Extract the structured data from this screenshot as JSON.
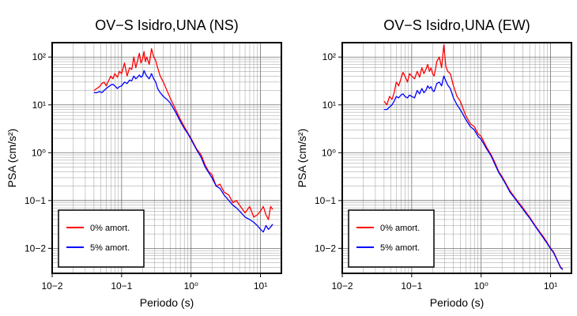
{
  "chart_data": [
    {
      "type": "line",
      "title": "OV−S Isidro,UNA (NS)",
      "xlabel": "Periodo (s)",
      "ylabel": "PSA (cm/s²)",
      "xscale": "log",
      "yscale": "log",
      "xlim": [
        0.01,
        20
      ],
      "ylim": [
        0.003,
        200
      ],
      "x_ticks": [
        {
          "label": "10−2",
          "value": 0.01
        },
        {
          "label": "10−1",
          "value": 0.1
        },
        {
          "label": "10⁰",
          "value": 1
        },
        {
          "label": "10¹",
          "value": 10
        }
      ],
      "y_ticks": [
        {
          "label": "10−2",
          "value": 0.01
        },
        {
          "label": "10−1",
          "value": 0.1
        },
        {
          "label": "10⁰",
          "value": 1
        },
        {
          "label": "10¹",
          "value": 10
        },
        {
          "label": "10²",
          "value": 100
        }
      ],
      "grid": true,
      "legend_position": "bottom-left",
      "series": [
        {
          "name": "0% amort.",
          "color": "#ff0000",
          "x": [
            0.04,
            0.044,
            0.048,
            0.052,
            0.056,
            0.06,
            0.065,
            0.07,
            0.075,
            0.08,
            0.087,
            0.093,
            0.1,
            0.11,
            0.12,
            0.13,
            0.14,
            0.15,
            0.16,
            0.17,
            0.18,
            0.19,
            0.2,
            0.21,
            0.22,
            0.23,
            0.25,
            0.27,
            0.29,
            0.31,
            0.33,
            0.36,
            0.4,
            0.45,
            0.5,
            0.6,
            0.7,
            0.8,
            0.9,
            1.0,
            1.2,
            1.4,
            1.6,
            1.8,
            2.0,
            2.3,
            2.6,
            3.0,
            3.5,
            4.0,
            4.5,
            5.0,
            6.0,
            7.0,
            8.0,
            9.0,
            10.0,
            11.0,
            12.0,
            13.0,
            14.0,
            15.0
          ],
          "y": [
            20,
            22,
            24,
            28,
            30,
            25,
            32,
            40,
            35,
            45,
            38,
            50,
            45,
            75,
            40,
            60,
            55,
            100,
            60,
            85,
            120,
            75,
            90,
            130,
            80,
            100,
            70,
            150,
            100,
            85,
            60,
            40,
            30,
            20,
            14,
            8,
            5,
            3.5,
            2.6,
            2.0,
            1.2,
            0.9,
            0.55,
            0.4,
            0.35,
            0.2,
            0.22,
            0.15,
            0.13,
            0.09,
            0.1,
            0.08,
            0.055,
            0.075,
            0.045,
            0.05,
            0.06,
            0.075,
            0.05,
            0.04,
            0.075,
            0.065
          ]
        },
        {
          "name": "5% amort.",
          "color": "#0000ff",
          "x": [
            0.04,
            0.044,
            0.048,
            0.052,
            0.056,
            0.06,
            0.065,
            0.07,
            0.075,
            0.08,
            0.087,
            0.093,
            0.1,
            0.11,
            0.12,
            0.13,
            0.14,
            0.15,
            0.16,
            0.17,
            0.18,
            0.19,
            0.2,
            0.21,
            0.22,
            0.23,
            0.25,
            0.27,
            0.29,
            0.31,
            0.33,
            0.36,
            0.4,
            0.45,
            0.5,
            0.6,
            0.7,
            0.8,
            0.9,
            1.0,
            1.2,
            1.4,
            1.6,
            1.8,
            2.0,
            2.3,
            2.6,
            3.0,
            3.5,
            4.0,
            4.5,
            5.0,
            6.0,
            7.0,
            8.0,
            9.0,
            10.0,
            11.0,
            12.0,
            13.0,
            14.0,
            15.0
          ],
          "y": [
            18,
            18,
            19,
            18,
            20,
            22,
            24,
            26,
            27,
            25,
            22,
            24,
            25,
            30,
            28,
            33,
            32,
            40,
            35,
            38,
            42,
            38,
            40,
            52,
            45,
            40,
            35,
            45,
            35,
            30,
            22,
            18,
            15,
            13,
            11,
            7,
            4.5,
            3.2,
            2.5,
            1.9,
            1.15,
            0.8,
            0.5,
            0.38,
            0.3,
            0.2,
            0.18,
            0.13,
            0.1,
            0.08,
            0.07,
            0.06,
            0.045,
            0.04,
            0.035,
            0.03,
            0.025,
            0.022,
            0.03,
            0.025,
            0.028,
            0.032
          ]
        }
      ]
    },
    {
      "type": "line",
      "title": "OV−S Isidro,UNA (EW)",
      "xlabel": "Periodo (s)",
      "ylabel": "PSA (cm/s²)",
      "xscale": "log",
      "yscale": "log",
      "xlim": [
        0.01,
        20
      ],
      "ylim": [
        0.003,
        200
      ],
      "x_ticks": [
        {
          "label": "10−2",
          "value": 0.01
        },
        {
          "label": "10−1",
          "value": 0.1
        },
        {
          "label": "10⁰",
          "value": 1
        },
        {
          "label": "10¹",
          "value": 10
        }
      ],
      "y_ticks": [
        {
          "label": "10−2",
          "value": 0.01
        },
        {
          "label": "10−1",
          "value": 0.1
        },
        {
          "label": "10⁰",
          "value": 1
        },
        {
          "label": "10¹",
          "value": 10
        },
        {
          "label": "10²",
          "value": 100
        }
      ],
      "grid": true,
      "legend_position": "bottom-left",
      "series": [
        {
          "name": "0% amort.",
          "color": "#ff0000",
          "x": [
            0.04,
            0.044,
            0.048,
            0.052,
            0.056,
            0.06,
            0.065,
            0.07,
            0.075,
            0.08,
            0.087,
            0.093,
            0.1,
            0.11,
            0.12,
            0.13,
            0.14,
            0.15,
            0.16,
            0.17,
            0.18,
            0.19,
            0.2,
            0.21,
            0.22,
            0.23,
            0.25,
            0.27,
            0.29,
            0.31,
            0.33,
            0.36,
            0.4,
            0.45,
            0.5,
            0.6,
            0.7,
            0.8,
            0.9,
            1.0,
            1.2,
            1.4,
            1.6,
            1.8,
            2.0,
            2.3,
            2.6,
            3.0,
            3.5,
            4.0,
            4.5,
            5.0,
            6.0,
            7.0,
            8.0,
            9.0,
            10.0,
            11.0,
            12.0,
            13.0,
            14.0,
            15.0
          ],
          "y": [
            12,
            10,
            15,
            13,
            18,
            30,
            25,
            35,
            48,
            40,
            30,
            45,
            40,
            35,
            50,
            38,
            60,
            45,
            55,
            70,
            50,
            60,
            45,
            40,
            55,
            80,
            100,
            60,
            180,
            65,
            50,
            45,
            25,
            15,
            12,
            6,
            4,
            3.5,
            2.5,
            2.2,
            1.3,
            0.9,
            0.6,
            0.4,
            0.32,
            0.22,
            0.16,
            0.12,
            0.09,
            0.07,
            0.055,
            0.045,
            0.03,
            0.022,
            0.017,
            0.013,
            0.01,
            0.0085,
            0.0065,
            0.005,
            0.004,
            0.0037
          ]
        },
        {
          "name": "5% amort.",
          "color": "#0000ff",
          "x": [
            0.04,
            0.044,
            0.048,
            0.052,
            0.056,
            0.06,
            0.065,
            0.07,
            0.075,
            0.08,
            0.087,
            0.093,
            0.1,
            0.11,
            0.12,
            0.13,
            0.14,
            0.15,
            0.16,
            0.17,
            0.18,
            0.19,
            0.2,
            0.21,
            0.22,
            0.23,
            0.25,
            0.27,
            0.29,
            0.31,
            0.33,
            0.36,
            0.4,
            0.45,
            0.5,
            0.6,
            0.7,
            0.8,
            0.9,
            1.0,
            1.2,
            1.4,
            1.6,
            1.8,
            2.0,
            2.3,
            2.6,
            3.0,
            3.5,
            4.0,
            4.5,
            5.0,
            6.0,
            7.0,
            8.0,
            9.0,
            10.0,
            11.0,
            12.0,
            13.0,
            14.0,
            15.0
          ],
          "y": [
            8,
            8,
            9,
            10,
            12,
            15,
            14,
            16,
            17,
            15,
            14,
            16,
            15,
            14,
            20,
            17,
            22,
            18,
            20,
            25,
            22,
            24,
            20,
            19,
            23,
            28,
            30,
            25,
            40,
            32,
            26,
            22,
            14,
            10,
            8,
            5,
            3.5,
            3.0,
            2.2,
            1.9,
            1.2,
            0.85,
            0.55,
            0.38,
            0.3,
            0.21,
            0.15,
            0.115,
            0.085,
            0.066,
            0.052,
            0.043,
            0.029,
            0.021,
            0.016,
            0.0125,
            0.0098,
            0.0082,
            0.0063,
            0.0049,
            0.0039,
            0.0036
          ]
        }
      ]
    }
  ]
}
